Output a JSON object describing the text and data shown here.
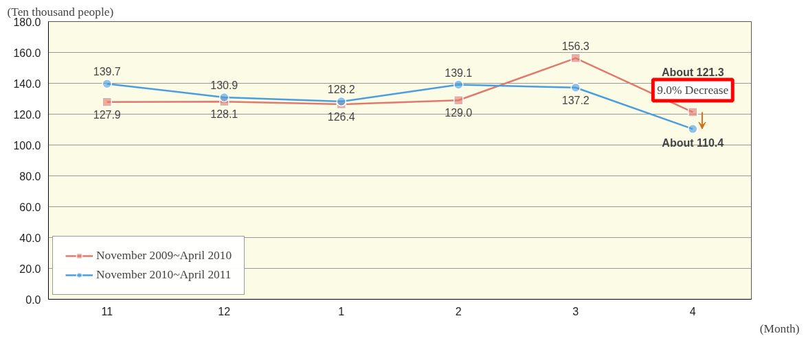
{
  "chart_data": {
    "type": "line",
    "xlabel": "(Month)",
    "ylabel": "(Ten thousand people)",
    "categories": [
      "11",
      "12",
      "1",
      "2",
      "3",
      "4"
    ],
    "series": [
      {
        "name": "November 2009~April 2010",
        "color": "#e07a6e",
        "marker": "square",
        "values": [
          127.9,
          128.1,
          126.4,
          129.0,
          156.3,
          121.3
        ],
        "value_labels": [
          "127.9",
          "128.1",
          "126.4",
          "129.0",
          "156.3",
          "About 121.3"
        ]
      },
      {
        "name": "November 2010~April 2011",
        "color": "#4a9ee0",
        "marker": "circle",
        "values": [
          139.7,
          130.9,
          128.2,
          139.1,
          137.2,
          110.4
        ],
        "value_labels": [
          "139.7",
          "130.9",
          "128.2",
          "139.1",
          "137.2",
          "About 110.4"
        ]
      }
    ],
    "ylim": [
      0,
      180
    ],
    "yticks": [
      {
        "value": 0,
        "label": "0.0"
      },
      {
        "value": 20,
        "label": "20.0"
      },
      {
        "value": 40,
        "label": "40.0"
      },
      {
        "value": 60,
        "label": "60.0"
      },
      {
        "value": 80,
        "label": "80.0"
      },
      {
        "value": 100,
        "label": "100.0"
      },
      {
        "value": 120,
        "label": "120.0"
      },
      {
        "value": 140,
        "label": "140.0"
      },
      {
        "value": 160,
        "label": "160.0"
      },
      {
        "value": 180,
        "label": "180.0"
      }
    ],
    "annotations": [
      "9.0% Decrease"
    ],
    "grid": "y",
    "legend": "bottom left"
  }
}
